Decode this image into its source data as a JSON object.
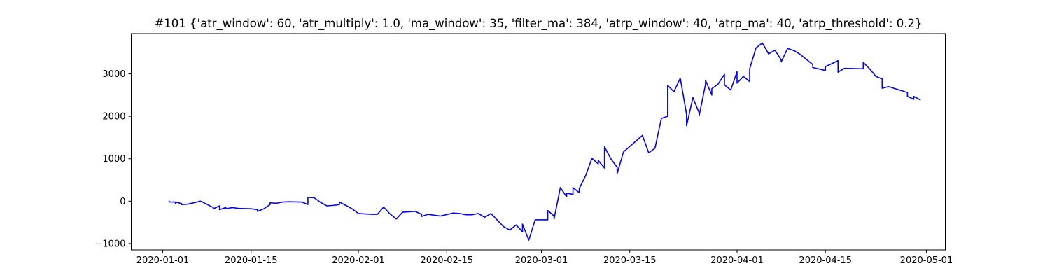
{
  "chart_data": {
    "type": "line",
    "title": "#101 {'atr_window': 60, 'atr_multiply': 1.0, 'ma_window': 35, 'filter_ma': 384, 'atrp_window': 40, 'atrp_ma': 40, 'atrp_threshold': 0.2}",
    "xlabel": "",
    "ylabel": "",
    "xlim": [
      "2019-12-27",
      "2020-05-04"
    ],
    "ylim": [
      -1150,
      3950
    ],
    "grid": false,
    "legend": "none",
    "line_color": "#0000ff",
    "x_ticks": [
      "2020-01-01",
      "2020-01-15",
      "2020-02-01",
      "2020-02-15",
      "2020-03-01",
      "2020-03-15",
      "2020-04-01",
      "2020-04-15",
      "2020-05-01"
    ],
    "y_ticks": [
      -1000,
      0,
      1000,
      2000,
      3000
    ],
    "series": [
      {
        "x": [
          "2020-01-02",
          "2020-01-02",
          "2020-01-03",
          "2020-01-03",
          "2020-01-03",
          "2020-01-04",
          "2020-01-04",
          "2020-01-05",
          "2020-01-07",
          "2020-01-09",
          "2020-01-09",
          "2020-01-10",
          "2020-01-10",
          "2020-01-11",
          "2020-01-11",
          "2020-01-12",
          "2020-01-13",
          "2020-01-15",
          "2020-01-16",
          "2020-01-16",
          "2020-01-17",
          "2020-01-18",
          "2020-01-18",
          "2020-01-19",
          "2020-01-20",
          "2020-01-21",
          "2020-01-23",
          "2020-01-24",
          "2020-01-24",
          "2020-01-25",
          "2020-01-26",
          "2020-01-27",
          "2020-01-28",
          "2020-01-29",
          "2020-01-29",
          "2020-01-30",
          "2020-01-31",
          "2020-02-01",
          "2020-02-03",
          "2020-02-04",
          "2020-02-05",
          "2020-02-06",
          "2020-02-07",
          "2020-02-08",
          "2020-02-10",
          "2020-02-11",
          "2020-02-11",
          "2020-02-12",
          "2020-02-14",
          "2020-02-16",
          "2020-02-17",
          "2020-02-18",
          "2020-02-19",
          "2020-02-20",
          "2020-02-21",
          "2020-02-22",
          "2020-02-24",
          "2020-02-25",
          "2020-02-26",
          "2020-02-27",
          "2020-02-27",
          "2020-02-28",
          "2020-02-29",
          "2020-03-01",
          "2020-03-02",
          "2020-03-02",
          "2020-03-03",
          "2020-03-03",
          "2020-03-03",
          "2020-03-04",
          "2020-03-05",
          "2020-03-05",
          "2020-03-06",
          "2020-03-06",
          "2020-03-07",
          "2020-03-07",
          "2020-03-08",
          "2020-03-09",
          "2020-03-10",
          "2020-03-10",
          "2020-03-11",
          "2020-03-11",
          "2020-03-12",
          "2020-03-13",
          "2020-03-13",
          "2020-03-14",
          "2020-03-17",
          "2020-03-18",
          "2020-03-19",
          "2020-03-20",
          "2020-03-21",
          "2020-03-21",
          "2020-03-22",
          "2020-03-23",
          "2020-03-24",
          "2020-03-24",
          "2020-03-24",
          "2020-03-25",
          "2020-03-26",
          "2020-03-26",
          "2020-03-27",
          "2020-03-27",
          "2020-03-28",
          "2020-03-28",
          "2020-03-29",
          "2020-03-30",
          "2020-03-30",
          "2020-03-31",
          "2020-04-01",
          "2020-04-01",
          "2020-04-02",
          "2020-04-03",
          "2020-04-03",
          "2020-04-04",
          "2020-04-05",
          "2020-04-06",
          "2020-04-07",
          "2020-04-08",
          "2020-04-08",
          "2020-04-09",
          "2020-04-10",
          "2020-04-11",
          "2020-04-13",
          "2020-04-13",
          "2020-04-15",
          "2020-04-15",
          "2020-04-17",
          "2020-04-17",
          "2020-04-18",
          "2020-04-21",
          "2020-04-21",
          "2020-04-22",
          "2020-04-23",
          "2020-04-24",
          "2020-04-24",
          "2020-04-25",
          "2020-04-28",
          "2020-04-28",
          "2020-04-29",
          "2020-04-29",
          "2020-04-30"
        ],
        "y": [
          0,
          -20,
          -20,
          -60,
          -20,
          -60,
          -80,
          -70,
          0,
          -150,
          -180,
          -110,
          -200,
          -150,
          -180,
          -150,
          -170,
          -180,
          -200,
          -240,
          -180,
          -80,
          -40,
          -50,
          -20,
          -15,
          -20,
          -80,
          90,
          80,
          -30,
          -110,
          -100,
          -80,
          -20,
          -100,
          -180,
          -290,
          -310,
          -310,
          -140,
          -300,
          -420,
          -260,
          -240,
          -310,
          -360,
          -310,
          -350,
          -280,
          -290,
          -320,
          -320,
          -290,
          -380,
          -290,
          -600,
          -680,
          -560,
          -720,
          -540,
          -920,
          -440,
          -440,
          -440,
          -220,
          -350,
          -380,
          -420,
          320,
          100,
          190,
          160,
          320,
          200,
          300,
          600,
          1010,
          880,
          960,
          780,
          1280,
          1000,
          800,
          650,
          1160,
          1550,
          1140,
          1250,
          1950,
          2000,
          2730,
          2580,
          2900,
          2050,
          2130,
          1780,
          2440,
          2080,
          2020,
          2750,
          2850,
          2500,
          2650,
          2760,
          2990,
          2740,
          2620,
          3050,
          2780,
          2940,
          2820,
          3120,
          3610,
          3730,
          3470,
          3560,
          3330,
          3280,
          3600,
          3550,
          3460,
          3220,
          3150,
          3080,
          3170,
          3310,
          3040,
          3130,
          3120,
          3270,
          3120,
          2940,
          2880,
          2660,
          2700,
          2560,
          2470,
          2400,
          2470,
          2390
        ]
      }
    ]
  }
}
